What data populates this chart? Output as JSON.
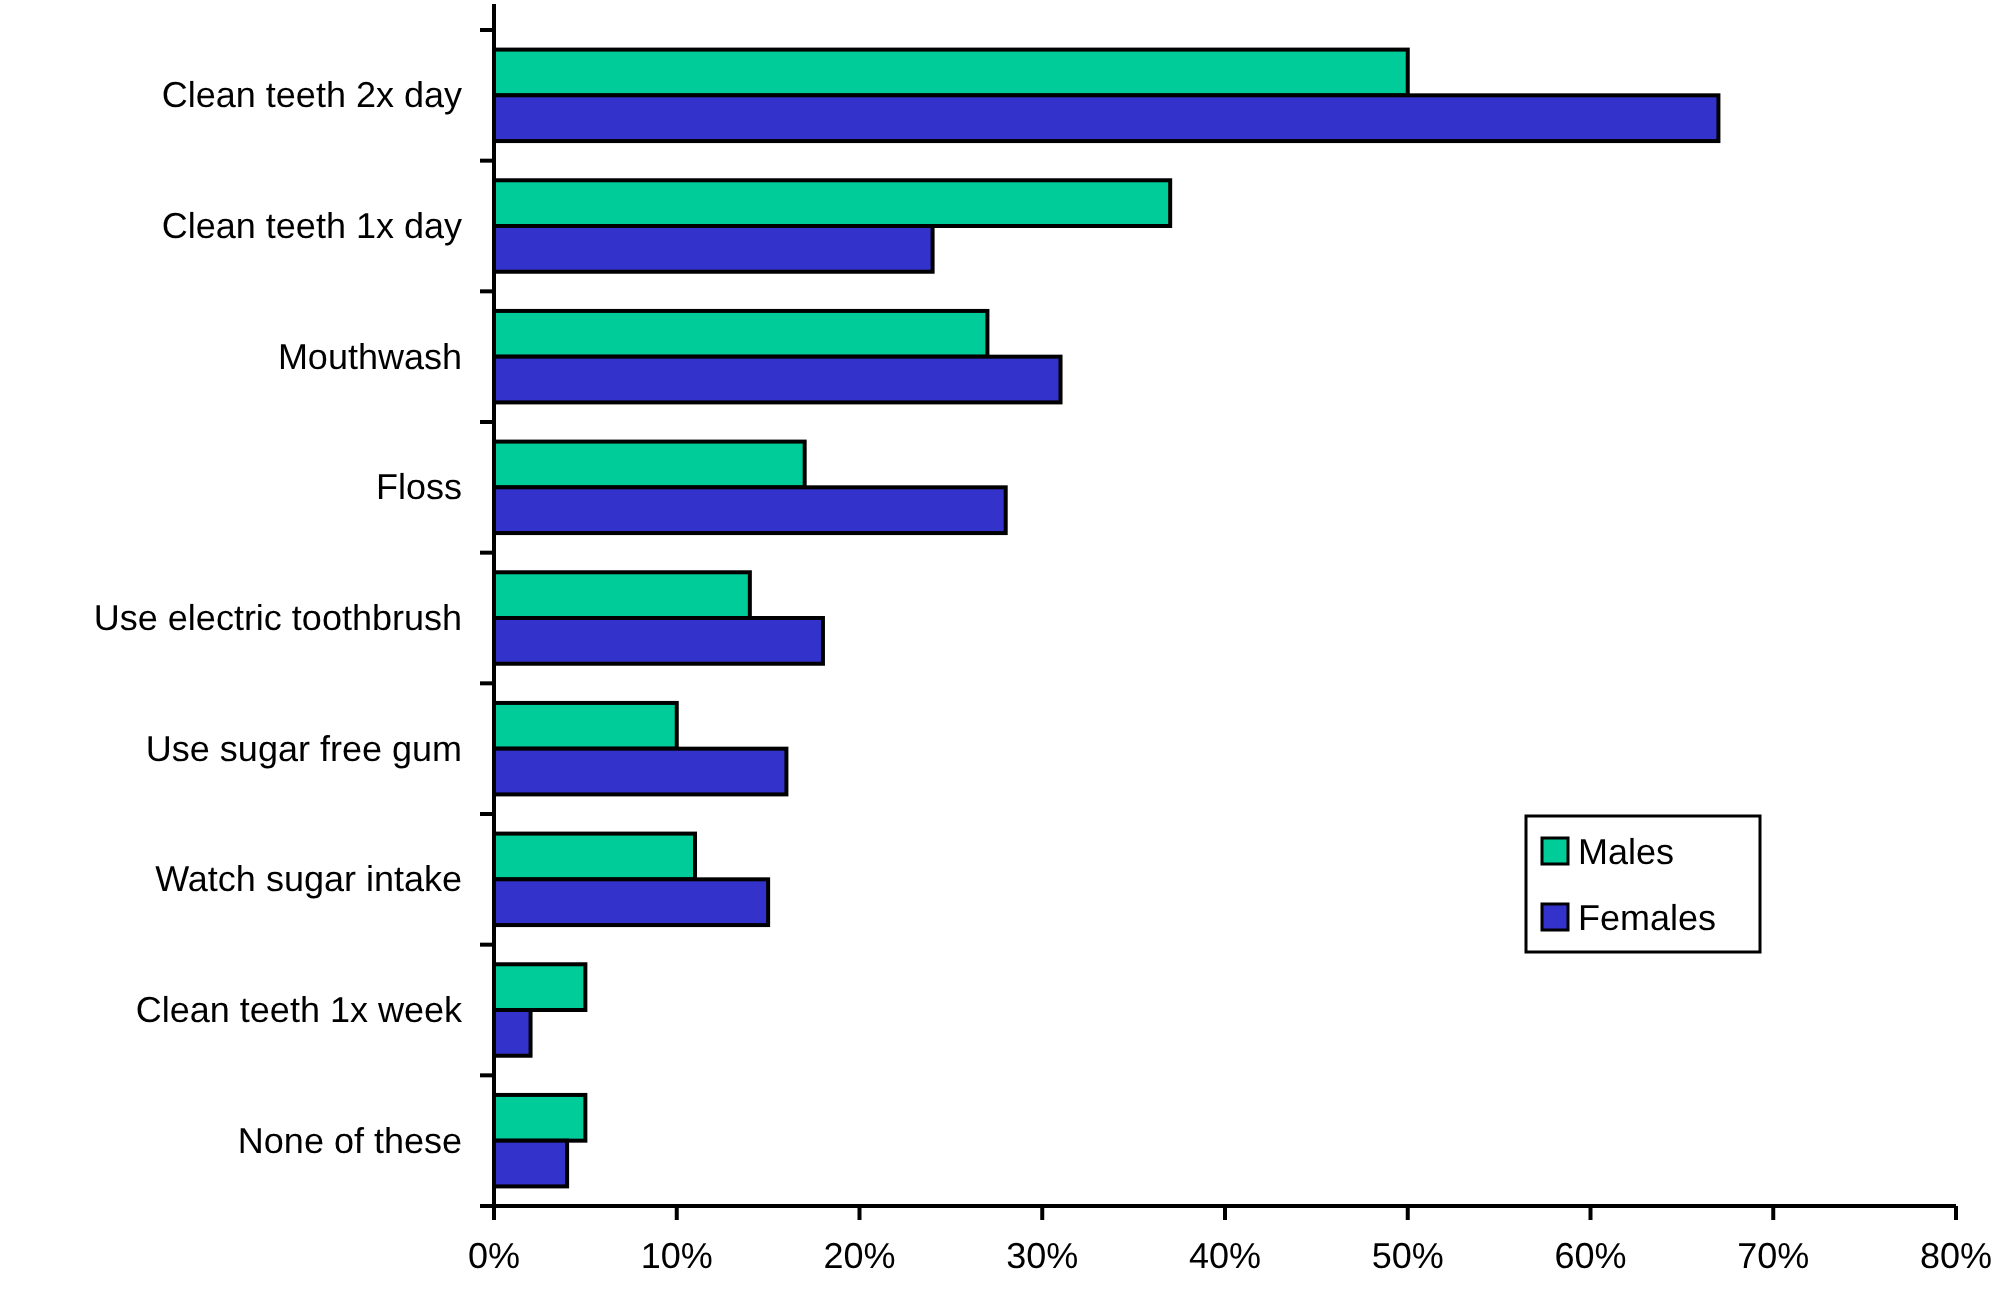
{
  "chart_data": {
    "type": "bar",
    "orientation": "horizontal",
    "categories": [
      "Clean teeth 2x day",
      "Clean teeth 1x day",
      "Mouthwash",
      "Floss",
      "Use electric toothbrush",
      "Use sugar free gum",
      "Watch sugar intake",
      "Clean teeth 1x week",
      "None of these"
    ],
    "series": [
      {
        "name": "Males",
        "color": "#00cc99",
        "values": [
          50,
          37,
          27,
          17,
          14,
          10,
          11,
          5,
          5
        ]
      },
      {
        "name": "Females",
        "color": "#3333cc",
        "values": [
          67,
          24,
          31,
          28,
          18,
          16,
          15,
          2,
          4
        ]
      }
    ],
    "xlim": [
      0,
      80
    ],
    "xticks": [
      {
        "value": 0,
        "label": "0%"
      },
      {
        "value": 10,
        "label": "10%"
      },
      {
        "value": 20,
        "label": "20%"
      },
      {
        "value": 30,
        "label": "30%"
      },
      {
        "value": 40,
        "label": "40%"
      },
      {
        "value": 50,
        "label": "50%"
      },
      {
        "value": 60,
        "label": "60%"
      },
      {
        "value": 70,
        "label": "70%"
      },
      {
        "value": 80,
        "label": "80%"
      }
    ],
    "legend": "right",
    "grid": false
  }
}
